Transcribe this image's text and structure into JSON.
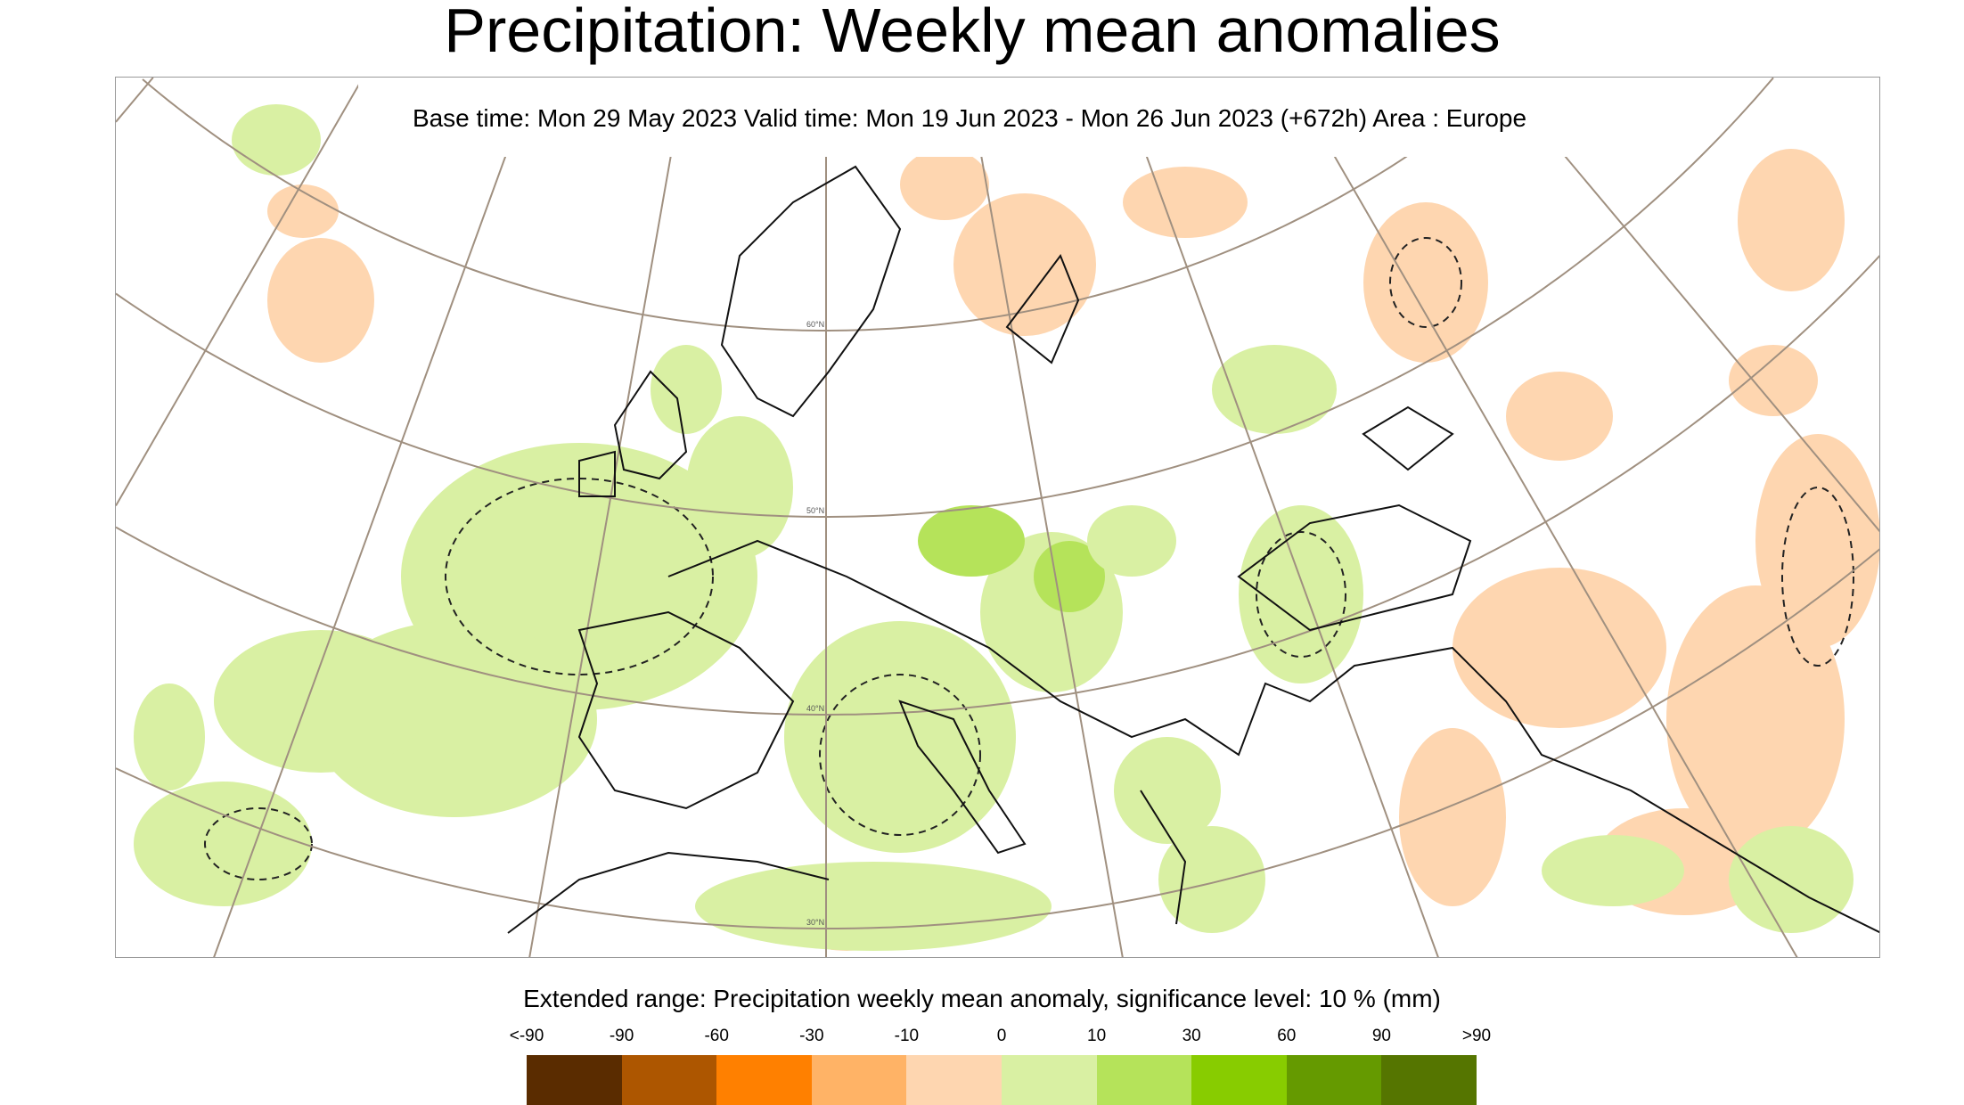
{
  "title": "Precipitation: Weekly mean anomalies",
  "subtitle": "Base time: Mon 29 May 2023 Valid time: Mon 19 Jun 2023 - Mon 26 Jun 2023 (+672h) Area : Europe",
  "map": {
    "area": "Europe",
    "graticule_labels": [
      "60°N",
      "50°N",
      "40°N",
      "30°N"
    ],
    "colors": {
      "land_outline": "#111111",
      "graticule": "#a09080",
      "negative": "#fed6b0",
      "positive": "#d9f0a3",
      "positive_strong": "#b5e35a"
    }
  },
  "legend": {
    "title": "Extended range: Precipitation weekly mean anomaly, significance level: 10 % (mm)",
    "labels": [
      "<-90",
      "-90",
      "-60",
      "-30",
      "-10",
      "0",
      "10",
      "30",
      "60",
      "90",
      ">90"
    ],
    "colors": [
      "#5a2c00",
      "#ad5600",
      "#ff8000",
      "#ffb366",
      "#fed6b0",
      "#d9f0a3",
      "#b5e35a",
      "#88cc00",
      "#659a00",
      "#557500"
    ]
  }
}
